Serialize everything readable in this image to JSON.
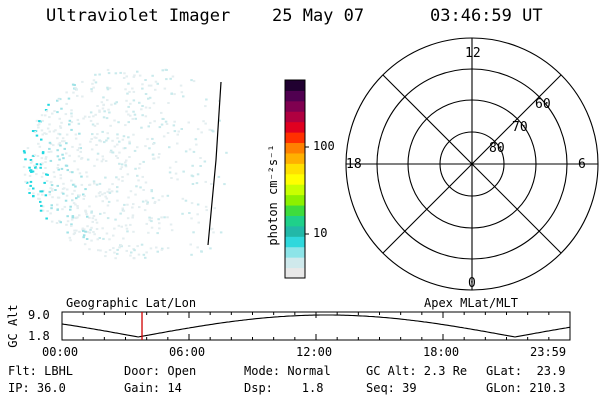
{
  "header": {
    "instrument": "Ultraviolet Imager",
    "date": "25 May 07",
    "time": "03:46:59 UT"
  },
  "colorbar": {
    "unit_label": "photon cm⁻²s⁻¹",
    "tick_10": "10",
    "tick_100": "100",
    "colors": [
      "#e8e8e8",
      "#cfe9ec",
      "#8de4e8",
      "#2fd8dc",
      "#22b8a8",
      "#1fd08a",
      "#3edc3c",
      "#8cf000",
      "#c8ff00",
      "#ffff00",
      "#ffe000",
      "#ffb000",
      "#ff8000",
      "#ff3000",
      "#e00020",
      "#b00040",
      "#800050",
      "#500050",
      "#200030"
    ]
  },
  "polar": {
    "mlt_12": "12",
    "mlt_18": "18",
    "mlt_6": "6",
    "mlt_0": "0",
    "lat_60": "60",
    "lat_70": "70",
    "lat_80": "80"
  },
  "strip": {
    "ylabel": "GC Alt",
    "ytick_top": "9.0",
    "ytick_bottom": "1.8",
    "left_title": "Geographic Lat/Lon",
    "right_title": "Apex MLat/MLT",
    "times": [
      "00:00",
      "06:00",
      "12:00",
      "18:00",
      "23:59"
    ],
    "marker_time_hours": 3.78,
    "marker_color": "#d00000"
  },
  "footer": {
    "flt": "Flt: LBHL",
    "ip": "IP: 36.0",
    "door": "Door: Open",
    "gain": "Gain: 14",
    "mode": "Mode: Normal",
    "dsp": "Dsp:    1.8",
    "gcalt": "GC Alt: 2.3 Re",
    "seq": "Seq: 39",
    "glat": "GLat:  23.9",
    "glon": "GLon: 210.3"
  }
}
